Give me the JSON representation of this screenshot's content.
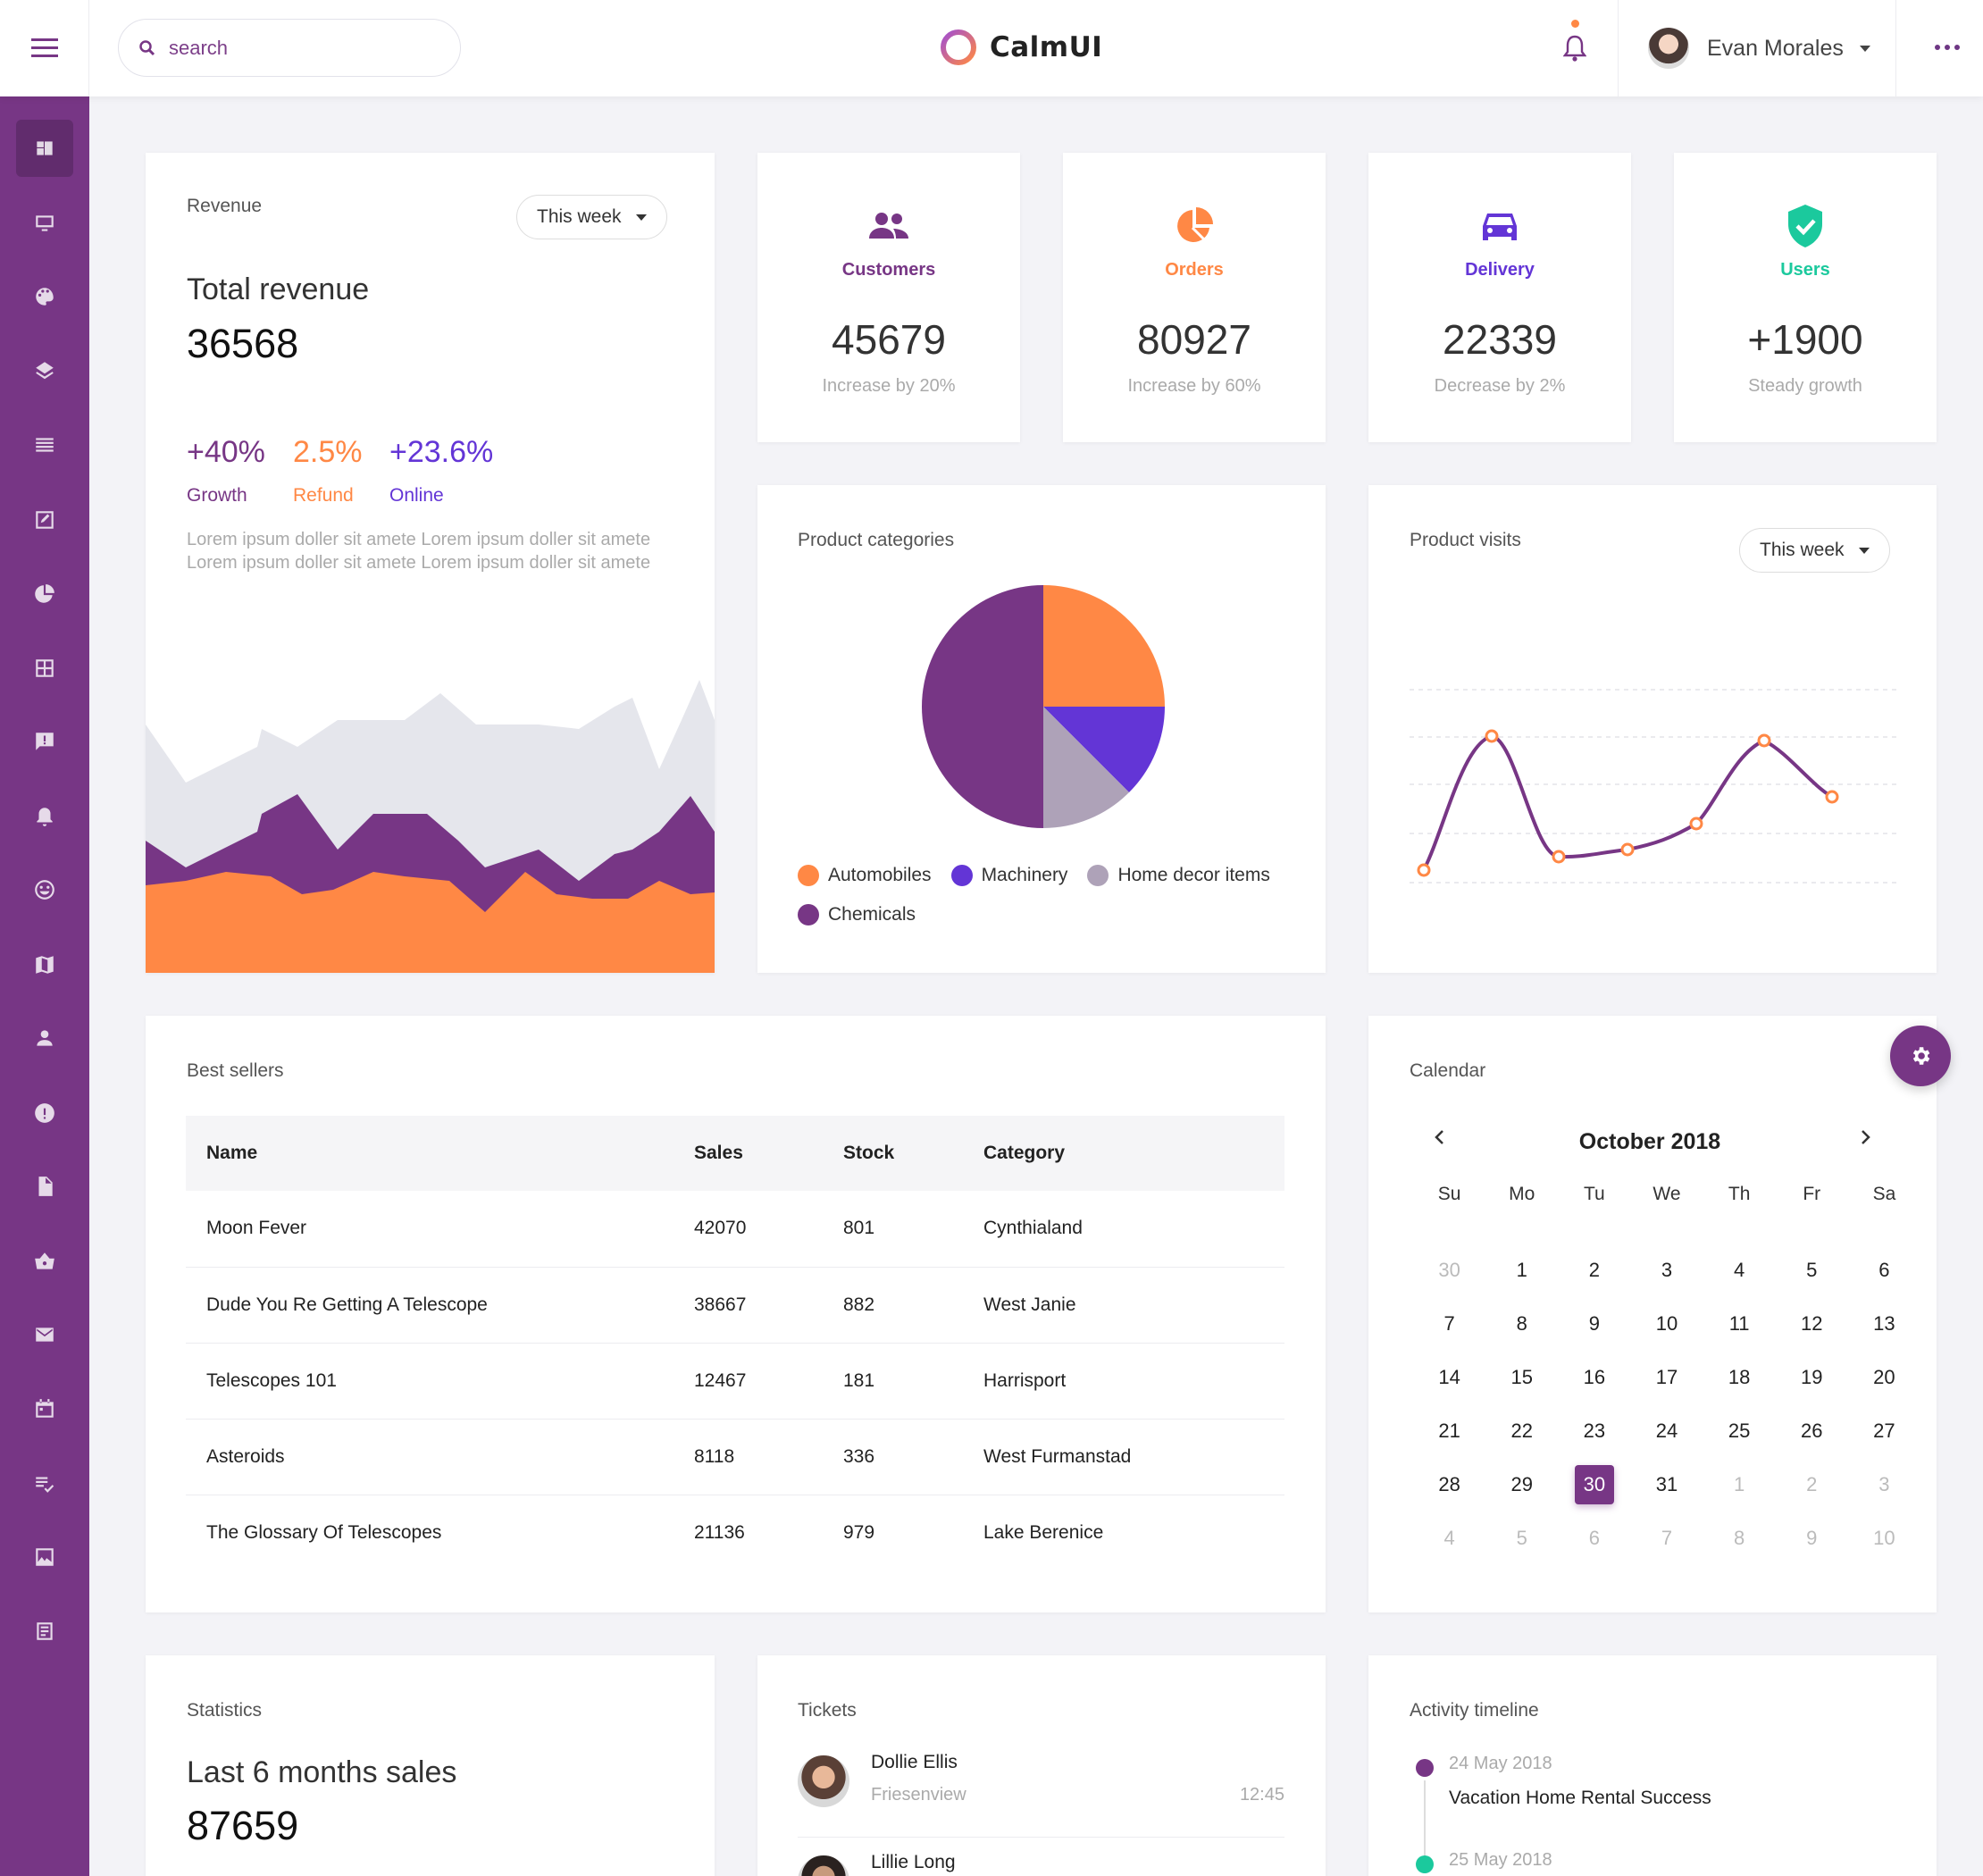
{
  "header": {
    "search_placeholder": "search",
    "brand": "CalmUI",
    "user_name": "Evan Morales"
  },
  "colors": {
    "purple": "#773685",
    "orange": "#ff8845",
    "indigo": "#6335d6",
    "teal": "#1bc99d",
    "grey": "#aea2b8"
  },
  "revenue": {
    "title": "Revenue",
    "range": "This week",
    "label": "Total revenue",
    "value": "36568",
    "stats": [
      {
        "value": "+40%",
        "label": "Growth"
      },
      {
        "value": "2.5%",
        "label": "Refund"
      },
      {
        "value": "+23.6%",
        "label": "Online"
      }
    ],
    "description": "Lorem ipsum doller sit amete Lorem ipsum doller sit amete Lorem ipsum doller sit amete Lorem ipsum doller sit amete"
  },
  "kpis": [
    {
      "label": "Customers",
      "value": "45679",
      "sub": "Increase by 20%",
      "icon": "users-icon"
    },
    {
      "label": "Orders",
      "value": "80927",
      "sub": "Increase by 60%",
      "icon": "pie-chart-icon"
    },
    {
      "label": "Delivery",
      "value": "22339",
      "sub": "Decrease by 2%",
      "icon": "car-icon"
    },
    {
      "label": "Users",
      "value": "+1900",
      "sub": "Steady growth",
      "icon": "shield-check-icon"
    }
  ],
  "categories": {
    "title": "Product categories",
    "legend": [
      "Automobiles",
      "Machinery",
      "Home decor items",
      "Chemicals"
    ]
  },
  "visits": {
    "title": "Product visits",
    "range": "This week"
  },
  "best_sellers": {
    "title": "Best sellers",
    "columns": [
      "Name",
      "Sales",
      "Stock",
      "Category"
    ],
    "rows": [
      [
        "Moon Fever",
        "42070",
        "801",
        "Cynthialand"
      ],
      [
        "Dude You Re Getting A Telescope",
        "38667",
        "882",
        "West Janie"
      ],
      [
        "Telescopes 101",
        "12467",
        "181",
        "Harrisport"
      ],
      [
        "Asteroids",
        "8118",
        "336",
        "West Furmanstad"
      ],
      [
        "The Glossary Of Telescopes",
        "21136",
        "979",
        "Lake Berenice"
      ]
    ]
  },
  "calendar": {
    "title": "Calendar",
    "month": "October 2018",
    "days_of_week": [
      "Su",
      "Mo",
      "Tu",
      "We",
      "Th",
      "Fr",
      "Sa"
    ],
    "weeks": [
      [
        "30",
        "1",
        "2",
        "3",
        "4",
        "5",
        "6"
      ],
      [
        "7",
        "8",
        "9",
        "10",
        "11",
        "12",
        "13"
      ],
      [
        "14",
        "15",
        "16",
        "17",
        "18",
        "19",
        "20"
      ],
      [
        "21",
        "22",
        "23",
        "24",
        "25",
        "26",
        "27"
      ],
      [
        "28",
        "29",
        "30",
        "31",
        "1",
        "2",
        "3"
      ],
      [
        "4",
        "5",
        "6",
        "7",
        "8",
        "9",
        "10"
      ]
    ],
    "selected": "30"
  },
  "statistics": {
    "title": "Statistics",
    "label": "Last 6 months sales",
    "value": "87659"
  },
  "tickets": {
    "title": "Tickets",
    "items": [
      {
        "name": "Dollie Ellis",
        "place": "Friesenview",
        "time": "12:45"
      },
      {
        "name": "Lillie Long",
        "place": "",
        "time": ""
      }
    ]
  },
  "timeline": {
    "title": "Activity timeline",
    "items": [
      {
        "date": "24 May 2018",
        "title": "Vacation Home Rental Success"
      },
      {
        "date": "25 May 2018",
        "title": ""
      }
    ]
  }
}
